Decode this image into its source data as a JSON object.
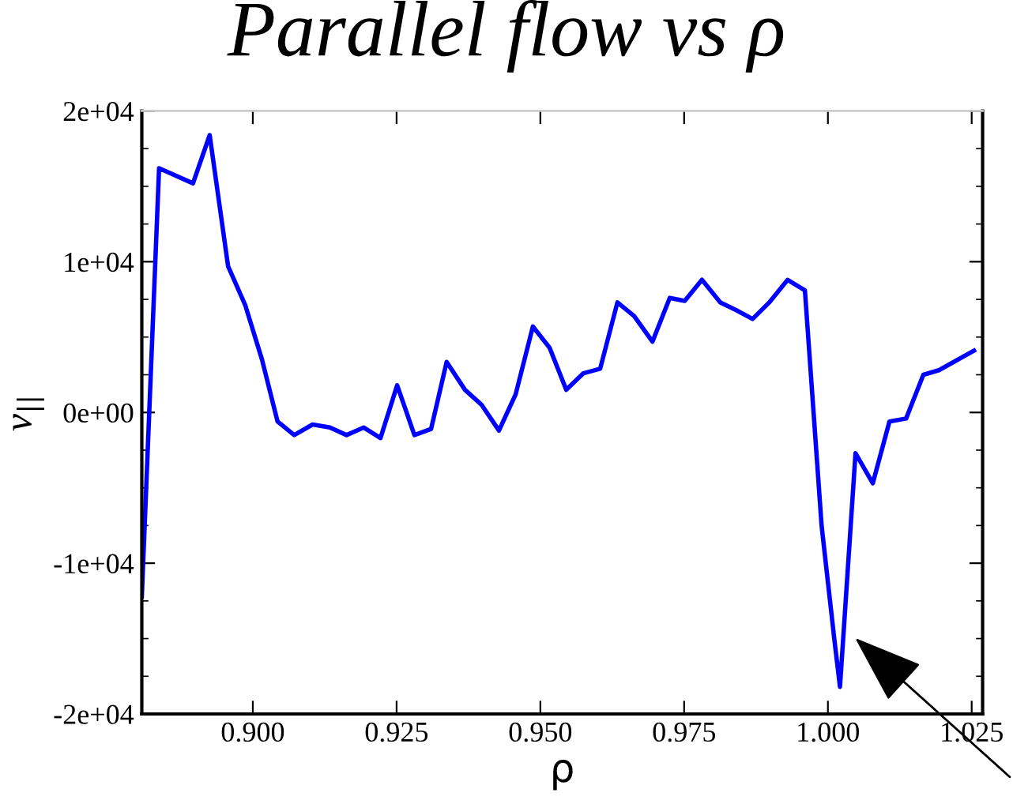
{
  "chart_data": {
    "type": "line",
    "title": "Parallel flow vs ρ",
    "xlabel": "ρ",
    "ylabel": "v$_{||}$",
    "x": [
      0.8807,
      0.8837,
      0.8896,
      0.8925,
      0.8957,
      0.8987,
      0.9016,
      0.9043,
      0.9072,
      0.9104,
      0.9134,
      0.9163,
      0.9193,
      0.9222,
      0.9251,
      0.9281,
      0.931,
      0.9337,
      0.9369,
      0.9398,
      0.9428,
      0.9457,
      0.9487,
      0.9516,
      0.9545,
      0.9575,
      0.9604,
      0.9634,
      0.9663,
      0.9695,
      0.9725,
      0.9751,
      0.9781,
      0.9813,
      0.984,
      0.9869,
      0.9898,
      0.993,
      0.996,
      0.9989,
      1.0011,
      1.0021,
      1.0048,
      1.0078,
      1.0107,
      1.0136,
      1.0166,
      1.0193,
      1.0254
    ],
    "series": [
      {
        "color": "#0000ff",
        "values": [
          -12200,
          16200,
          15200,
          18400,
          9700,
          7100,
          3500,
          -600,
          -1500,
          -800,
          -1000,
          -1500,
          -1000,
          -1700,
          1800,
          -1500,
          -1100,
          3350,
          1500,
          500,
          -1200,
          1200,
          5700,
          4300,
          1500,
          2600,
          2900,
          7300,
          6400,
          4700,
          7600,
          7400,
          8800,
          7300,
          6800,
          6200,
          7300,
          8800,
          8100,
          -7500,
          -15000,
          -18200,
          -2700,
          -4700,
          -600,
          -400,
          2500,
          2800,
          4100
        ]
      }
    ],
    "xlim": [
      0.8807,
      1.0269
    ],
    "ylim": [
      -20000,
      20000
    ],
    "xticks": [
      {
        "value": 0.9,
        "label": "0.900"
      },
      {
        "value": 0.925,
        "label": "0.925"
      },
      {
        "value": 0.95,
        "label": "0.950"
      },
      {
        "value": 0.975,
        "label": "0.975"
      },
      {
        "value": 1.0,
        "label": "1.000"
      },
      {
        "value": 1.025,
        "label": "1.025"
      }
    ],
    "yticks": [
      {
        "value": -20000,
        "label": "-2e+04"
      },
      {
        "value": -10000,
        "label": "-1e+04"
      },
      {
        "value": 0,
        "label": "0e+00"
      },
      {
        "value": 10000,
        "label": "1e+04"
      },
      {
        "value": 20000,
        "label": "2e+04"
      }
    ],
    "grid": false,
    "marker": "none",
    "line_style": "solid"
  }
}
